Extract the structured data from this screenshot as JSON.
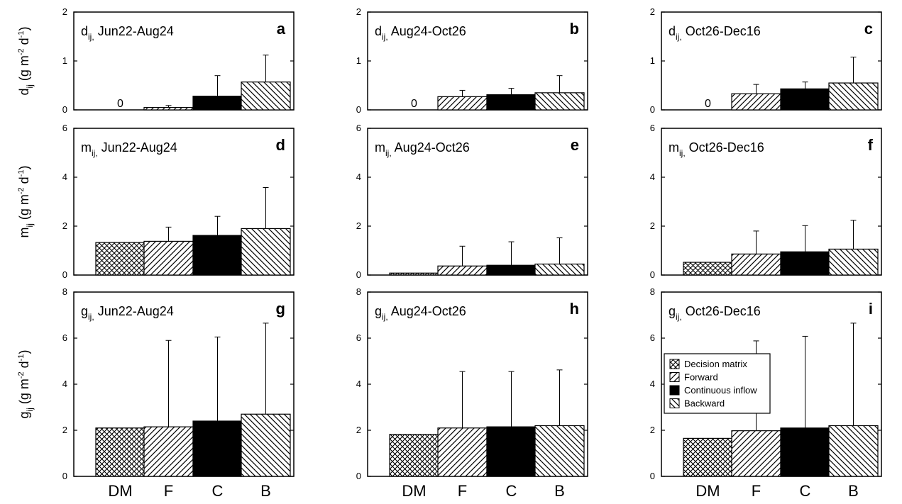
{
  "chart_data": {
    "type": "bar",
    "categories": [
      "DM",
      "F",
      "C",
      "B"
    ],
    "legend": {
      "placement": "panel-i",
      "entries": [
        {
          "category": "DM",
          "label": "Decision matrix",
          "pattern": "crosshatch"
        },
        {
          "category": "F",
          "label": "Forward",
          "pattern": "forward-diagonal"
        },
        {
          "category": "C",
          "label": "Continuous inflow",
          "pattern": "solid-black"
        },
        {
          "category": "B",
          "label": "Backward",
          "pattern": "backward-diagonal"
        }
      ]
    },
    "rows": [
      {
        "var": "d",
        "sub": "ij",
        "ylabel": {
          "main": "d",
          "sub": "ij",
          "unit_open": "(g m",
          "sup1": "-2",
          "unit_mid": " d",
          "sup2": "-1",
          "unit_close": ")"
        },
        "ylim": [
          0,
          2
        ],
        "yticks": [
          0,
          1,
          2
        ]
      },
      {
        "var": "m",
        "sub": "ij",
        "ylabel": {
          "main": "m",
          "sub": "ij",
          "unit_open": "(g m",
          "sup1": "-2",
          "unit_mid": " d",
          "sup2": "-1",
          "unit_close": ")"
        },
        "ylim": [
          0,
          6
        ],
        "yticks": [
          0,
          2,
          4,
          6
        ]
      },
      {
        "var": "g",
        "sub": "ij",
        "ylabel": {
          "main": "g",
          "sub": "ij",
          "unit_open": "(g m",
          "sup1": "-2",
          "unit_mid": " d",
          "sup2": "-1",
          "unit_close": ")"
        },
        "ylim": [
          0,
          8
        ],
        "yticks": [
          0,
          2,
          4,
          6,
          8
        ]
      }
    ],
    "columns": [
      {
        "period": "Jun22-Aug24"
      },
      {
        "period": "Aug24-Oct26"
      },
      {
        "period": "Oct26-Dec16"
      }
    ],
    "panels": [
      {
        "id": "a",
        "row": 0,
        "col": 0,
        "title_var": "d",
        "title_sub": "ij,",
        "title_period": "Jun22-Aug24",
        "values": [
          0,
          0.05,
          0.28,
          0.57
        ],
        "errors": [
          null,
          0.09,
          0.7,
          1.12
        ],
        "zero_label": "0"
      },
      {
        "id": "b",
        "row": 0,
        "col": 1,
        "title_var": "d",
        "title_sub": "ij,",
        "title_period": "Aug24-Oct26",
        "values": [
          0,
          0.27,
          0.31,
          0.35
        ],
        "errors": [
          null,
          0.4,
          0.44,
          0.7
        ],
        "zero_label": "0"
      },
      {
        "id": "c",
        "row": 0,
        "col": 2,
        "title_var": "d",
        "title_sub": "ij,",
        "title_period": "Oct26-Dec16",
        "values": [
          0,
          0.33,
          0.43,
          0.55
        ],
        "errors": [
          null,
          0.52,
          0.57,
          1.08
        ],
        "zero_label": "0"
      },
      {
        "id": "d",
        "row": 1,
        "col": 0,
        "title_var": "m",
        "title_sub": "ij,",
        "title_period": "Jun22-Aug24",
        "values": [
          1.33,
          1.38,
          1.62,
          1.9
        ],
        "errors": [
          null,
          1.96,
          2.4,
          3.58
        ],
        "zero_label": ""
      },
      {
        "id": "e",
        "row": 1,
        "col": 1,
        "title_var": "m",
        "title_sub": "ij,",
        "title_period": "Aug24-Oct26",
        "values": [
          0.08,
          0.37,
          0.4,
          0.45
        ],
        "errors": [
          null,
          1.18,
          1.36,
          1.52
        ],
        "zero_label": ""
      },
      {
        "id": "f",
        "row": 1,
        "col": 2,
        "title_var": "m",
        "title_sub": "ij,",
        "title_period": "Oct26-Dec16",
        "values": [
          0.52,
          0.86,
          0.95,
          1.06
        ],
        "errors": [
          null,
          1.8,
          2.02,
          2.24
        ],
        "zero_label": ""
      },
      {
        "id": "g",
        "row": 2,
        "col": 0,
        "title_var": "g",
        "title_sub": "ij,",
        "title_period": "Jun22-Aug24",
        "values": [
          2.1,
          2.15,
          2.4,
          2.7
        ],
        "errors": [
          null,
          5.9,
          6.05,
          6.65
        ],
        "zero_label": ""
      },
      {
        "id": "h",
        "row": 2,
        "col": 1,
        "title_var": "g",
        "title_sub": "ij,",
        "title_period": "Aug24-Oct26",
        "values": [
          1.82,
          2.1,
          2.15,
          2.2
        ],
        "errors": [
          null,
          4.55,
          4.55,
          4.62
        ],
        "zero_label": ""
      },
      {
        "id": "i",
        "row": 2,
        "col": 2,
        "title_var": "g",
        "title_sub": "ij,",
        "title_period": "Oct26-Dec16",
        "values": [
          1.65,
          1.98,
          2.1,
          2.2
        ],
        "errors": [
          null,
          5.88,
          6.08,
          6.65
        ],
        "zero_label": ""
      }
    ],
    "grid": false
  }
}
